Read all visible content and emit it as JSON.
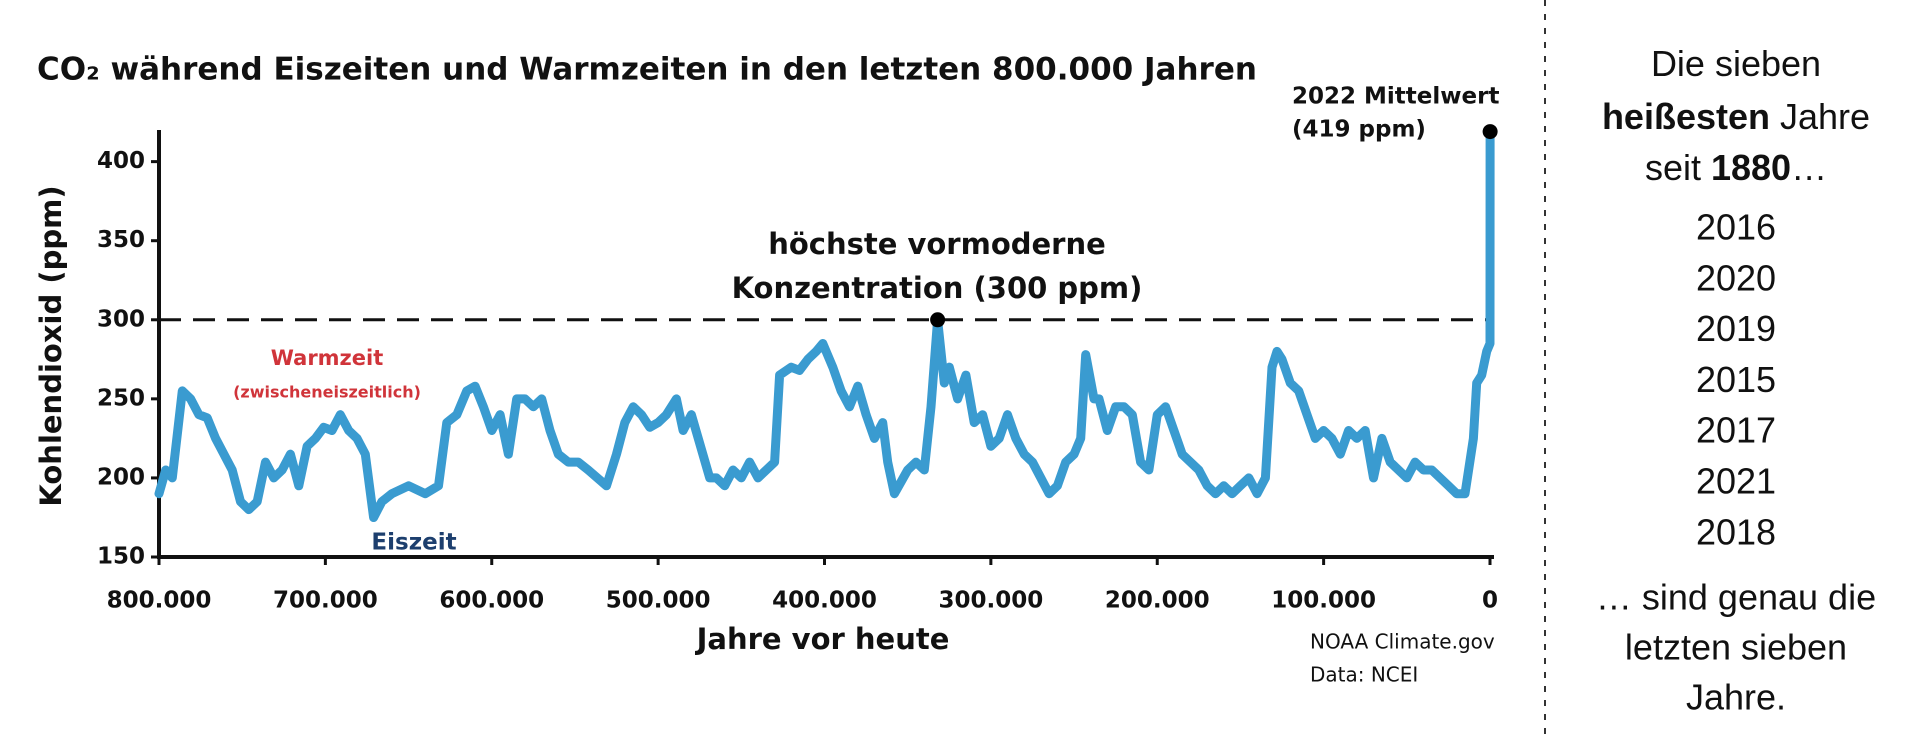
{
  "chart_data": {
    "type": "line",
    "title": "CO₂ während Eiszeiten und Warmzeiten in den letzten 800.000 Jahren",
    "xlabel": "Jahre vor heute",
    "ylabel": "Kohlendioxid (ppm)",
    "color": "#3a9bd0",
    "x": [
      800000,
      796000,
      792000,
      786000,
      781000,
      776000,
      771000,
      766000,
      761000,
      756000,
      751000,
      746000,
      741000,
      736000,
      731000,
      726000,
      721000,
      716000,
      711000,
      706000,
      701000,
      696000,
      691000,
      686000,
      681000,
      676000,
      671000,
      666000,
      660000,
      650000,
      640000,
      632000,
      627000,
      621000,
      615000,
      610000,
      605000,
      600000,
      595000,
      590000,
      585000,
      580000,
      575000,
      570000,
      565000,
      560000,
      554000,
      548000,
      542000,
      531000,
      525000,
      520000,
      515000,
      510000,
      505000,
      500000,
      495000,
      489000,
      485000,
      480000,
      469000,
      465000,
      460000,
      455000,
      450000,
      445000,
      440000,
      435000,
      430000,
      427000,
      420000,
      415000,
      410000,
      405000,
      401000,
      395000,
      390000,
      385000,
      380000,
      375000,
      370000,
      365000,
      362000,
      358000,
      350000,
      345000,
      340000,
      336000,
      332000,
      328000,
      325000,
      320000,
      315000,
      310000,
      305000,
      300000,
      295000,
      290000,
      285000,
      280000,
      275000,
      270000,
      265000,
      260000,
      255000,
      250000,
      246000,
      243000,
      238000,
      235000,
      230000,
      225000,
      220000,
      215000,
      210000,
      205000,
      200000,
      195000,
      190000,
      185000,
      180000,
      175000,
      170000,
      165000,
      160000,
      155000,
      150000,
      145000,
      140000,
      135000,
      131000,
      128000,
      125000,
      120000,
      115000,
      110000,
      105000,
      100000,
      95000,
      90000,
      85000,
      80000,
      75000,
      70000,
      65000,
      60000,
      55000,
      50000,
      45000,
      40000,
      35000,
      30000,
      25000,
      20000,
      15000,
      10000,
      8000,
      5000,
      2000,
      0,
      -72
    ],
    "values": [
      190,
      205,
      200,
      255,
      250,
      240,
      238,
      225,
      215,
      205,
      185,
      180,
      185,
      210,
      200,
      205,
      215,
      195,
      220,
      225,
      232,
      230,
      240,
      230,
      225,
      215,
      175,
      185,
      190,
      195,
      190,
      195,
      235,
      240,
      255,
      258,
      245,
      230,
      240,
      215,
      250,
      250,
      245,
      250,
      230,
      215,
      210,
      210,
      205,
      195,
      215,
      235,
      245,
      240,
      232,
      235,
      240,
      250,
      230,
      240,
      200,
      200,
      195,
      205,
      200,
      210,
      200,
      205,
      210,
      265,
      270,
      268,
      275,
      280,
      285,
      270,
      255,
      245,
      258,
      240,
      225,
      235,
      210,
      190,
      205,
      210,
      205,
      245,
      300,
      260,
      270,
      250,
      265,
      235,
      240,
      220,
      225,
      240,
      225,
      215,
      210,
      200,
      190,
      195,
      210,
      215,
      225,
      278,
      250,
      250,
      230,
      245,
      245,
      240,
      210,
      205,
      240,
      245,
      230,
      215,
      210,
      205,
      195,
      190,
      195,
      190,
      195,
      200,
      190,
      200,
      270,
      280,
      275,
      260,
      255,
      240,
      225,
      230,
      225,
      215,
      230,
      225,
      230,
      200,
      225,
      210,
      205,
      200,
      210,
      205,
      205,
      200,
      195,
      190,
      190,
      225,
      260,
      265,
      280,
      285,
      419
    ],
    "xlim": [
      800000,
      0
    ],
    "ylim": [
      150,
      420
    ],
    "xticks": [
      {
        "value": 800000,
        "label": "800.000"
      },
      {
        "value": 700000,
        "label": "700.000"
      },
      {
        "value": 600000,
        "label": "600.000"
      },
      {
        "value": 500000,
        "label": "500.000"
      },
      {
        "value": 400000,
        "label": "400.000"
      },
      {
        "value": 300000,
        "label": "300.000"
      },
      {
        "value": 200000,
        "label": "200.000"
      },
      {
        "value": 100000,
        "label": "100.000"
      },
      0
    ],
    "yticks": [
      150,
      200,
      250,
      300,
      350,
      400
    ],
    "hline": {
      "value": 300,
      "style": "dashed"
    },
    "annotations": [
      {
        "lines": [
          "höchste vormoderne",
          "Konzentration (300 ppm)"
        ],
        "x": 332000,
        "y": 300
      },
      {
        "lines": [
          "2022 Mittelwert",
          "(419 ppm)"
        ],
        "x": -72,
        "y": 419
      },
      {
        "lines": [
          "Warmzeit",
          "(zwischeneiszeitlich)"
        ],
        "color": "#d0343a"
      },
      {
        "lines": [
          "Eiszeit"
        ],
        "color": "#1d3f6e"
      }
    ],
    "source": [
      "NOAA Climate.gov",
      "Data: NCEI"
    ]
  },
  "side_panel": {
    "intro": [
      [
        {
          "text": "Die sieben"
        }
      ],
      [
        {
          "text": "heißesten",
          "bold": true
        },
        {
          "text": " Jahre"
        }
      ],
      [
        {
          "text": "seit "
        },
        {
          "text": "1880",
          "bold": true
        },
        {
          "text": "…"
        }
      ]
    ],
    "years": [
      2016,
      2020,
      2019,
      2015,
      2017,
      2021,
      2018
    ],
    "outro": [
      "… sind genau die",
      "letzten sieben",
      "Jahre."
    ]
  }
}
